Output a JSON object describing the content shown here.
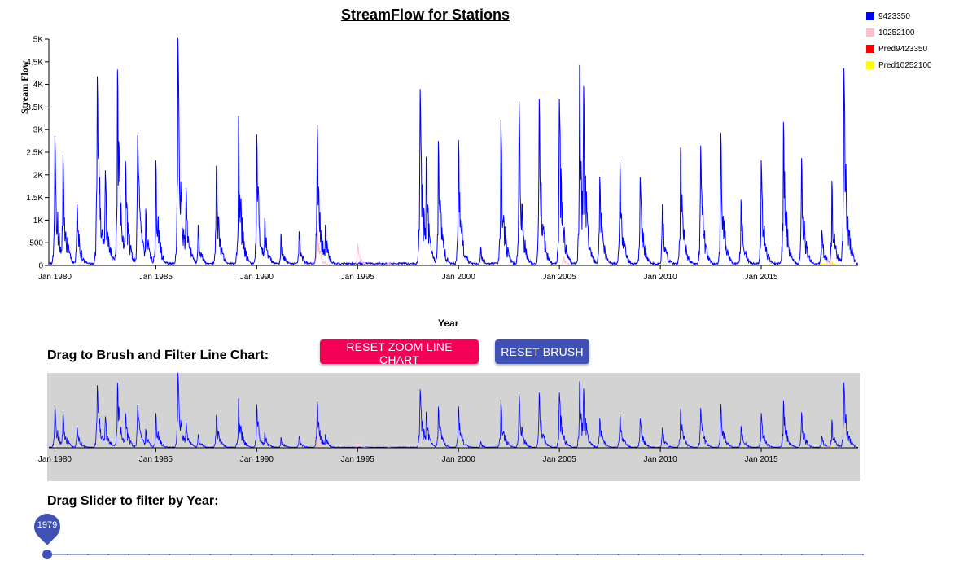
{
  "header": {
    "title": "StreamFlow for Stations"
  },
  "legend": [
    {
      "label": "9423350",
      "color": "#0000ff"
    },
    {
      "label": "10252100",
      "color": "#ffc0cb"
    },
    {
      "label": "Pred9423350",
      "color": "#ff0000"
    },
    {
      "label": "Pred10252100",
      "color": "#ffff00"
    }
  ],
  "main_chart": {
    "ylabel": "Stream Flow",
    "xlabel": "Year"
  },
  "controls": {
    "brush_title": "Drag to Brush and Filter Line Chart:",
    "reset_zoom_label": "RESET ZOOM LINE CHART",
    "reset_brush_label": "RESET BRUSH",
    "slider_title": "Drag Slider to filter by Year:",
    "slider_value": "1979"
  },
  "chart_data": [
    {
      "type": "line",
      "title": "StreamFlow for Stations",
      "xlabel": "Year",
      "ylabel": "Stream Flow",
      "x_ticks": [
        "Jan 1980",
        "Jan 1985",
        "Jan 1990",
        "Jan 1995",
        "Jan 2000",
        "Jan 2005",
        "Jan 2010",
        "Jan 2015"
      ],
      "y_ticks": [
        "0",
        "500",
        "1K",
        "1.5K",
        "2K",
        "2.5K",
        "3K",
        "3.5K",
        "4K",
        "4.5K",
        "5K"
      ],
      "xlim": [
        1979.7,
        2019.8
      ],
      "ylim": [
        0,
        5000
      ],
      "grid": false,
      "legend_position": "top-right",
      "series": [
        {
          "name": "9423350",
          "color": "#0000ff",
          "peaks": [
            {
              "x": 1980.0,
              "y": 2850
            },
            {
              "x": 1980.4,
              "y": 2450
            },
            {
              "x": 1981.1,
              "y": 1350
            },
            {
              "x": 1982.1,
              "y": 4180
            },
            {
              "x": 1982.5,
              "y": 2100
            },
            {
              "x": 1983.1,
              "y": 4330
            },
            {
              "x": 1983.5,
              "y": 2300
            },
            {
              "x": 1984.1,
              "y": 2880
            },
            {
              "x": 1984.5,
              "y": 1250
            },
            {
              "x": 1985.0,
              "y": 2320
            },
            {
              "x": 1986.1,
              "y": 5020
            },
            {
              "x": 1986.5,
              "y": 1700
            },
            {
              "x": 1987.1,
              "y": 900
            },
            {
              "x": 1988.0,
              "y": 2200
            },
            {
              "x": 1989.1,
              "y": 3300
            },
            {
              "x": 1990.0,
              "y": 2900
            },
            {
              "x": 1990.4,
              "y": 1050
            },
            {
              "x": 1991.2,
              "y": 700
            },
            {
              "x": 1992.1,
              "y": 750
            },
            {
              "x": 1993.0,
              "y": 3100
            },
            {
              "x": 1993.4,
              "y": 900
            },
            {
              "x": 1998.1,
              "y": 3900
            },
            {
              "x": 1998.4,
              "y": 2400
            },
            {
              "x": 1999.0,
              "y": 2750
            },
            {
              "x": 2000.0,
              "y": 2770
            },
            {
              "x": 2001.1,
              "y": 400
            },
            {
              "x": 2002.1,
              "y": 3220
            },
            {
              "x": 2003.0,
              "y": 3630
            },
            {
              "x": 2004.0,
              "y": 3680
            },
            {
              "x": 2005.0,
              "y": 3680
            },
            {
              "x": 2006.0,
              "y": 4430
            },
            {
              "x": 2006.2,
              "y": 3960
            },
            {
              "x": 2007.0,
              "y": 1960
            },
            {
              "x": 2008.0,
              "y": 2280
            },
            {
              "x": 2009.0,
              "y": 1950
            },
            {
              "x": 2010.1,
              "y": 1350
            },
            {
              "x": 2011.0,
              "y": 2600
            },
            {
              "x": 2012.0,
              "y": 2650
            },
            {
              "x": 2013.0,
              "y": 2930
            },
            {
              "x": 2014.0,
              "y": 1450
            },
            {
              "x": 2015.0,
              "y": 2320
            },
            {
              "x": 2016.1,
              "y": 3170
            },
            {
              "x": 2017.0,
              "y": 2370
            },
            {
              "x": 2018.0,
              "y": 780
            },
            {
              "x": 2018.5,
              "y": 1870
            },
            {
              "x": 2019.1,
              "y": 4360
            }
          ]
        },
        {
          "name": "10252100",
          "color": "#ffc0cb",
          "peaks": [
            {
              "x": 1993.0,
              "y": 820
            },
            {
              "x": 1995.0,
              "y": 480
            },
            {
              "x": 1996.5,
              "y": 80
            },
            {
              "x": 2005.2,
              "y": 200
            },
            {
              "x": 2018.3,
              "y": 150
            }
          ]
        },
        {
          "name": "Pred9423350",
          "color": "#ff0000",
          "peaks": []
        },
        {
          "name": "Pred10252100",
          "color": "#ffff00",
          "peaks": [
            {
              "x": 2018.0,
              "y": 60
            },
            {
              "x": 2018.5,
              "y": 90
            }
          ]
        }
      ]
    },
    {
      "type": "line",
      "title": "",
      "x_ticks": [
        "Jan 1980",
        "Jan 1985",
        "Jan 1990",
        "Jan 1995",
        "Jan 2000",
        "Jan 2005",
        "Jan 2010",
        "Jan 2015"
      ],
      "xlim": [
        1979.7,
        2019.8
      ],
      "ylim": [
        0,
        5000
      ],
      "grid": false,
      "series_ref": "same data as main chart (overview with brush)"
    }
  ]
}
